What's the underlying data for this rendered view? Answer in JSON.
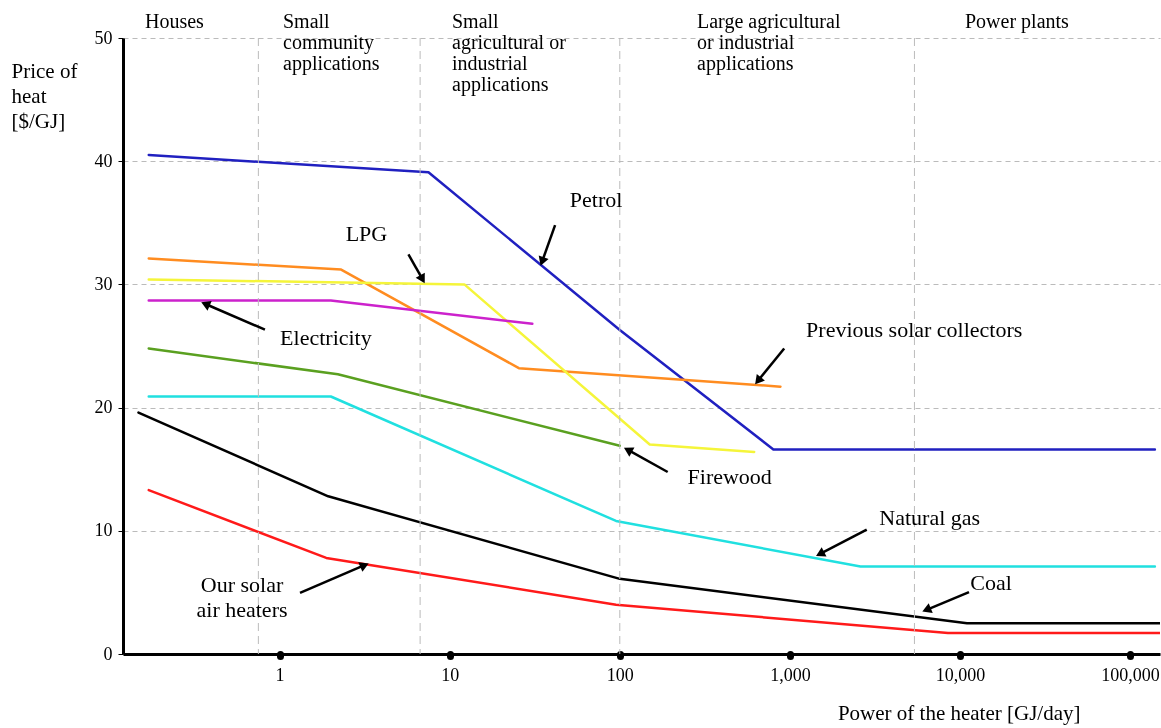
{
  "chart_data": {
    "type": "line",
    "xlabel": "Power of the heater [GJ/day]",
    "ylabel": "Price of\nheat\n[$/GJ]",
    "log": "x",
    "xlim": [
      0.12,
      150000
    ],
    "xticks": [
      1,
      10,
      100,
      {
        "value": 1000,
        "label": "1,000"
      },
      {
        "value": 10000,
        "label": "10,000"
      },
      {
        "value": 100000,
        "label": "100,000"
      }
    ],
    "ylim": [
      0,
      50
    ],
    "yticks": [
      0,
      10,
      20,
      30,
      40,
      50
    ],
    "grid": "y",
    "series": [
      {
        "color": "#2020c0",
        "x": [
          0.17,
          7.5,
          100,
          800,
          140000
        ],
        "values": [
          40.5,
          39.1,
          26.3,
          16.6,
          16.6
        ]
      },
      {
        "color": "#ff8c20",
        "x": [
          0.17,
          2.3,
          25.5,
          880
        ],
        "values": [
          32.1,
          31.2,
          23.2,
          21.7
        ]
      },
      {
        "color": "#f5f53a",
        "x": [
          0.17,
          12.2,
          150,
          617
        ],
        "values": [
          30.4,
          30.0,
          17.0,
          16.4
        ]
      },
      {
        "color": "#cc22cc",
        "x": [
          0.17,
          2.0,
          30.6
        ],
        "values": [
          28.7,
          28.7,
          26.8
        ]
      },
      {
        "color": "#5aa020",
        "x": [
          0.17,
          2.2,
          100
        ],
        "values": [
          24.8,
          22.7,
          16.9
        ]
      },
      {
        "color": "#20e0e0",
        "x": [
          0.17,
          2.0,
          95,
          2600,
          140000
        ],
        "values": [
          20.9,
          20.9,
          10.8,
          7.1,
          7.1
        ]
      },
      {
        "color": "#000000",
        "x": [
          0.148,
          1.93,
          100,
          11000,
          150000
        ],
        "values": [
          19.6,
          12.8,
          6.1,
          2.5,
          2.5
        ]
      },
      {
        "color": "#ff1a1a",
        "x": [
          0.17,
          1.88,
          95,
          8500,
          150000
        ],
        "values": [
          13.3,
          7.8,
          4.0,
          1.7,
          1.7
        ]
      }
    ],
    "ref_lines": [
      {
        "axis": "x",
        "value": 0.75,
        "color": "#bbbbbb",
        "line_style": "dashed"
      },
      {
        "axis": "x",
        "value": 6.7,
        "color": "#bbbbbb",
        "line_style": "dashed"
      },
      {
        "axis": "x",
        "value": 100,
        "color": "#bbbbbb",
        "line_style": "dashed"
      },
      {
        "axis": "x",
        "value": 5400,
        "color": "#bbbbbb",
        "line_style": "dashed"
      }
    ],
    "annotations": [
      {
        "text": "Petrol",
        "x": 34,
        "y": 31.4
      },
      {
        "text": "LPG",
        "x": 7.2,
        "y": 30.0
      },
      {
        "text": "Electricity",
        "x": 0.34,
        "y": 28.6
      },
      {
        "text": "Previous solar collectors",
        "x": 617,
        "y": 21.8
      },
      {
        "text": "Firewood",
        "x": 104,
        "y": 16.8
      },
      {
        "text": "Natural gas",
        "x": 1400,
        "y": 7.9
      },
      {
        "text": "Coal",
        "x": 5900,
        "y": 3.4
      },
      {
        "text": "Our solar\nair heaters",
        "x": 3.4,
        "y": 7.4
      },
      "Houses",
      "Small\ncommunity\napplications",
      "Small\nagricultural or\nindustrial\napplications",
      "Large agricultural\nor industrial\napplications",
      "Power plants"
    ]
  }
}
